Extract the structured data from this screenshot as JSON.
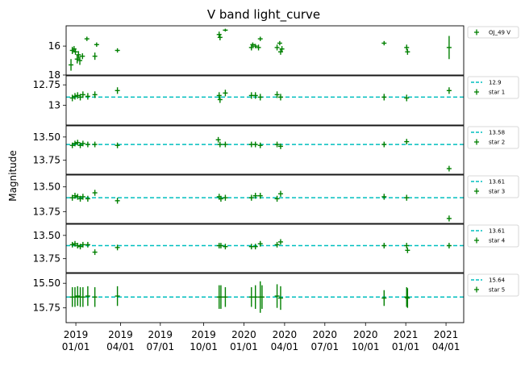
{
  "chart_data": {
    "type": "scatter",
    "title": "V band light_curve",
    "ylabel": "Magnitude",
    "x_ticks": [
      {
        "date": "2018-12-18",
        "label": "2019\n01/01"
      },
      {
        "date": "2019-03-29",
        "label": "2019\n04/01"
      },
      {
        "date": "2019-06-27",
        "label": "2019\n07/01"
      },
      {
        "date": "2019-10-03",
        "label": "2019\n10/01"
      },
      {
        "date": "2020-01-02",
        "label": "2020\n01/01"
      },
      {
        "date": "2020-04-03",
        "label": "2020\n04/01"
      },
      {
        "date": "2020-07-03",
        "label": "2020\n07/01"
      },
      {
        "date": "2020-10-03",
        "label": "2020\n10/01"
      },
      {
        "date": "2021-01-02",
        "label": "2021\n01/01"
      },
      {
        "date": "2021-04-03",
        "label": "2021\n04/01"
      }
    ],
    "xlim": [
      "2018-11-26",
      "2021-05-13"
    ],
    "point_color": "#008000",
    "ref_line_color": "#00bfbf",
    "panels": [
      {
        "name": "panel-oj49",
        "ylim": [
          18.0,
          14.6
        ],
        "yticks": [
          16,
          18
        ],
        "ref": null,
        "legend": [
          {
            "kind": "point",
            "text": "OJ_49 V"
          }
        ],
        "points": [
          {
            "x": "2018-12-07",
            "y": 17.3,
            "e": 0.4
          },
          {
            "x": "2018-12-10",
            "y": 16.3,
            "e": 0.25
          },
          {
            "x": "2018-12-14",
            "y": 16.2,
            "e": 0.2
          },
          {
            "x": "2018-12-17",
            "y": 16.4,
            "e": 0.2
          },
          {
            "x": "2018-12-21",
            "y": 16.9,
            "e": 0.3
          },
          {
            "x": "2018-12-24",
            "y": 16.6,
            "e": 0.25
          },
          {
            "x": "2018-12-27",
            "y": 17.0,
            "e": 0.3
          },
          {
            "x": "2019-01-02",
            "y": 16.7,
            "e": 0.2
          },
          {
            "x": "2019-01-12",
            "y": 15.5,
            "e": 0.15
          },
          {
            "x": "2019-01-30",
            "y": 16.7,
            "e": 0.25
          },
          {
            "x": "2019-02-03",
            "y": 15.9,
            "e": 0.15
          },
          {
            "x": "2019-03-22",
            "y": 16.3,
            "e": 0.15
          },
          {
            "x": "2019-11-07",
            "y": 15.2,
            "e": 0.2
          },
          {
            "x": "2019-11-09",
            "y": 15.4,
            "e": 0.2
          },
          {
            "x": "2019-11-21",
            "y": 14.9,
            "e": 0.1
          },
          {
            "x": "2020-01-19",
            "y": 16.1,
            "e": 0.2
          },
          {
            "x": "2020-01-22",
            "y": 15.9,
            "e": 0.15
          },
          {
            "x": "2020-01-28",
            "y": 16.0,
            "e": 0.15
          },
          {
            "x": "2020-02-04",
            "y": 16.1,
            "e": 0.2
          },
          {
            "x": "2020-02-08",
            "y": 15.5,
            "e": 0.15
          },
          {
            "x": "2020-03-17",
            "y": 16.1,
            "e": 0.2
          },
          {
            "x": "2020-03-23",
            "y": 15.8,
            "e": 0.15
          },
          {
            "x": "2020-03-25",
            "y": 16.4,
            "e": 0.2
          },
          {
            "x": "2020-03-28",
            "y": 16.2,
            "e": 0.2
          },
          {
            "x": "2020-11-14",
            "y": 15.8,
            "e": 0.15
          },
          {
            "x": "2021-01-04",
            "y": 16.1,
            "e": 0.2
          },
          {
            "x": "2021-01-06",
            "y": 16.4,
            "e": 0.2
          },
          {
            "x": "2021-04-10",
            "y": 16.1,
            "e": 0.8
          }
        ]
      },
      {
        "name": "panel-star1",
        "ylim": [
          13.24,
          12.64
        ],
        "yticks": [
          12.75,
          13.0
        ],
        "ref": 12.9,
        "legend": [
          {
            "kind": "line",
            "text": "12.9"
          },
          {
            "kind": "point",
            "text": "star 1"
          }
        ],
        "points": [
          {
            "x": "2018-12-10",
            "y": 12.91,
            "e": 0.04
          },
          {
            "x": "2018-12-16",
            "y": 12.89,
            "e": 0.04
          },
          {
            "x": "2018-12-22",
            "y": 12.88,
            "e": 0.04
          },
          {
            "x": "2018-12-28",
            "y": 12.9,
            "e": 0.04
          },
          {
            "x": "2019-01-03",
            "y": 12.87,
            "e": 0.04
          },
          {
            "x": "2019-01-14",
            "y": 12.89,
            "e": 0.04
          },
          {
            "x": "2019-01-30",
            "y": 12.87,
            "e": 0.04
          },
          {
            "x": "2019-03-22",
            "y": 12.82,
            "e": 0.04
          },
          {
            "x": "2019-11-07",
            "y": 12.88,
            "e": 0.04
          },
          {
            "x": "2019-11-09",
            "y": 12.93,
            "e": 0.04
          },
          {
            "x": "2019-11-21",
            "y": 12.85,
            "e": 0.04
          },
          {
            "x": "2020-01-19",
            "y": 12.88,
            "e": 0.04
          },
          {
            "x": "2020-01-28",
            "y": 12.88,
            "e": 0.04
          },
          {
            "x": "2020-02-08",
            "y": 12.9,
            "e": 0.04
          },
          {
            "x": "2020-03-17",
            "y": 12.87,
            "e": 0.04
          },
          {
            "x": "2020-03-25",
            "y": 12.9,
            "e": 0.04
          },
          {
            "x": "2020-11-14",
            "y": 12.9,
            "e": 0.04
          },
          {
            "x": "2021-01-04",
            "y": 12.91,
            "e": 0.04
          },
          {
            "x": "2021-04-10",
            "y": 12.82,
            "e": 0.04
          }
        ]
      },
      {
        "name": "panel-star2",
        "ylim": [
          13.9,
          13.38
        ],
        "yticks": [
          13.5,
          13.75
        ],
        "ref": 13.58,
        "legend": [
          {
            "kind": "line",
            "text": "13.58"
          },
          {
            "kind": "point",
            "text": "star 2"
          }
        ],
        "points": [
          {
            "x": "2018-12-10",
            "y": 13.59,
            "e": 0.03
          },
          {
            "x": "2018-12-16",
            "y": 13.57,
            "e": 0.03
          },
          {
            "x": "2018-12-22",
            "y": 13.56,
            "e": 0.03
          },
          {
            "x": "2018-12-28",
            "y": 13.59,
            "e": 0.03
          },
          {
            "x": "2019-01-03",
            "y": 13.57,
            "e": 0.03
          },
          {
            "x": "2019-01-14",
            "y": 13.58,
            "e": 0.03
          },
          {
            "x": "2019-01-30",
            "y": 13.58,
            "e": 0.03
          },
          {
            "x": "2019-03-22",
            "y": 13.59,
            "e": 0.03
          },
          {
            "x": "2019-11-05",
            "y": 13.53,
            "e": 0.03
          },
          {
            "x": "2019-11-09",
            "y": 13.58,
            "e": 0.03
          },
          {
            "x": "2019-11-21",
            "y": 13.58,
            "e": 0.03
          },
          {
            "x": "2020-01-19",
            "y": 13.58,
            "e": 0.03
          },
          {
            "x": "2020-01-28",
            "y": 13.58,
            "e": 0.03
          },
          {
            "x": "2020-02-08",
            "y": 13.59,
            "e": 0.03
          },
          {
            "x": "2020-03-17",
            "y": 13.58,
            "e": 0.03
          },
          {
            "x": "2020-03-25",
            "y": 13.6,
            "e": 0.03
          },
          {
            "x": "2020-11-14",
            "y": 13.58,
            "e": 0.03
          },
          {
            "x": "2021-01-04",
            "y": 13.55,
            "e": 0.03
          },
          {
            "x": "2021-04-10",
            "y": 13.84,
            "e": 0.03
          }
        ]
      },
      {
        "name": "panel-star3",
        "ylim": [
          13.87,
          13.38
        ],
        "yticks": [
          13.5,
          13.75
        ],
        "ref": 13.61,
        "legend": [
          {
            "kind": "line",
            "text": "13.61"
          },
          {
            "kind": "point",
            "text": "star 3"
          }
        ],
        "points": [
          {
            "x": "2018-12-10",
            "y": 13.61,
            "e": 0.03
          },
          {
            "x": "2018-12-16",
            "y": 13.59,
            "e": 0.03
          },
          {
            "x": "2018-12-22",
            "y": 13.6,
            "e": 0.03
          },
          {
            "x": "2018-12-28",
            "y": 13.62,
            "e": 0.03
          },
          {
            "x": "2019-01-03",
            "y": 13.6,
            "e": 0.03
          },
          {
            "x": "2019-01-14",
            "y": 13.62,
            "e": 0.03
          },
          {
            "x": "2019-01-30",
            "y": 13.56,
            "e": 0.03
          },
          {
            "x": "2019-03-22",
            "y": 13.64,
            "e": 0.03
          },
          {
            "x": "2019-11-07",
            "y": 13.6,
            "e": 0.03
          },
          {
            "x": "2019-11-11",
            "y": 13.62,
            "e": 0.03
          },
          {
            "x": "2019-11-21",
            "y": 13.61,
            "e": 0.03
          },
          {
            "x": "2020-01-19",
            "y": 13.61,
            "e": 0.03
          },
          {
            "x": "2020-01-28",
            "y": 13.59,
            "e": 0.03
          },
          {
            "x": "2020-02-08",
            "y": 13.59,
            "e": 0.03
          },
          {
            "x": "2020-03-17",
            "y": 13.62,
            "e": 0.03
          },
          {
            "x": "2020-03-25",
            "y": 13.57,
            "e": 0.03
          },
          {
            "x": "2020-11-14",
            "y": 13.6,
            "e": 0.03
          },
          {
            "x": "2021-01-04",
            "y": 13.61,
            "e": 0.03
          },
          {
            "x": "2021-04-10",
            "y": 13.82,
            "e": 0.03
          }
        ]
      },
      {
        "name": "panel-star4",
        "ylim": [
          13.9,
          13.38
        ],
        "yticks": [
          13.5,
          13.75
        ],
        "ref": 13.61,
        "legend": [
          {
            "kind": "line",
            "text": "13.61"
          },
          {
            "kind": "point",
            "text": "star 4"
          }
        ],
        "points": [
          {
            "x": "2018-12-10",
            "y": 13.6,
            "e": 0.03
          },
          {
            "x": "2018-12-16",
            "y": 13.59,
            "e": 0.03
          },
          {
            "x": "2018-12-22",
            "y": 13.61,
            "e": 0.03
          },
          {
            "x": "2018-12-28",
            "y": 13.62,
            "e": 0.03
          },
          {
            "x": "2019-01-03",
            "y": 13.6,
            "e": 0.03
          },
          {
            "x": "2019-01-14",
            "y": 13.6,
            "e": 0.03
          },
          {
            "x": "2019-01-30",
            "y": 13.68,
            "e": 0.03
          },
          {
            "x": "2019-03-22",
            "y": 13.63,
            "e": 0.03
          },
          {
            "x": "2019-11-07",
            "y": 13.61,
            "e": 0.03
          },
          {
            "x": "2019-11-11",
            "y": 13.61,
            "e": 0.03
          },
          {
            "x": "2019-11-21",
            "y": 13.62,
            "e": 0.03
          },
          {
            "x": "2020-01-19",
            "y": 13.62,
            "e": 0.03
          },
          {
            "x": "2020-01-28",
            "y": 13.62,
            "e": 0.03
          },
          {
            "x": "2020-02-08",
            "y": 13.59,
            "e": 0.03
          },
          {
            "x": "2020-03-17",
            "y": 13.6,
            "e": 0.03
          },
          {
            "x": "2020-03-25",
            "y": 13.57,
            "e": 0.03
          },
          {
            "x": "2020-11-14",
            "y": 13.61,
            "e": 0.03
          },
          {
            "x": "2021-01-04",
            "y": 13.61,
            "e": 0.03
          },
          {
            "x": "2021-01-06",
            "y": 13.66,
            "e": 0.03
          },
          {
            "x": "2021-04-10",
            "y": 13.61,
            "e": 0.03
          }
        ]
      },
      {
        "name": "panel-star5",
        "ylim": [
          15.9,
          15.4
        ],
        "yticks": [
          15.5,
          15.75
        ],
        "ref": 15.64,
        "legend": [
          {
            "kind": "line",
            "text": "15.64"
          },
          {
            "kind": "point",
            "text": "star 5"
          }
        ],
        "points": [
          {
            "x": "2018-12-10",
            "y": 15.64,
            "e": 0.1
          },
          {
            "x": "2018-12-16",
            "y": 15.64,
            "e": 0.1
          },
          {
            "x": "2018-12-22",
            "y": 15.63,
            "e": 0.1
          },
          {
            "x": "2018-12-28",
            "y": 15.64,
            "e": 0.1
          },
          {
            "x": "2019-01-03",
            "y": 15.64,
            "e": 0.1
          },
          {
            "x": "2019-01-14",
            "y": 15.63,
            "e": 0.1
          },
          {
            "x": "2019-01-30",
            "y": 15.64,
            "e": 0.1
          },
          {
            "x": "2019-03-22",
            "y": 15.63,
            "e": 0.1
          },
          {
            "x": "2019-11-07",
            "y": 15.64,
            "e": 0.12
          },
          {
            "x": "2019-11-11",
            "y": 15.64,
            "e": 0.12
          },
          {
            "x": "2019-11-21",
            "y": 15.64,
            "e": 0.1
          },
          {
            "x": "2020-01-19",
            "y": 15.64,
            "e": 0.1
          },
          {
            "x": "2020-01-28",
            "y": 15.64,
            "e": 0.12
          },
          {
            "x": "2020-02-08",
            "y": 15.64,
            "e": 0.16
          },
          {
            "x": "2020-02-12",
            "y": 15.64,
            "e": 0.12
          },
          {
            "x": "2020-03-17",
            "y": 15.63,
            "e": 0.12
          },
          {
            "x": "2020-03-25",
            "y": 15.65,
            "e": 0.12
          },
          {
            "x": "2020-11-14",
            "y": 15.65,
            "e": 0.08
          },
          {
            "x": "2021-01-04",
            "y": 15.64,
            "e": 0.1
          },
          {
            "x": "2021-01-06",
            "y": 15.65,
            "e": 0.1
          }
        ]
      }
    ]
  }
}
